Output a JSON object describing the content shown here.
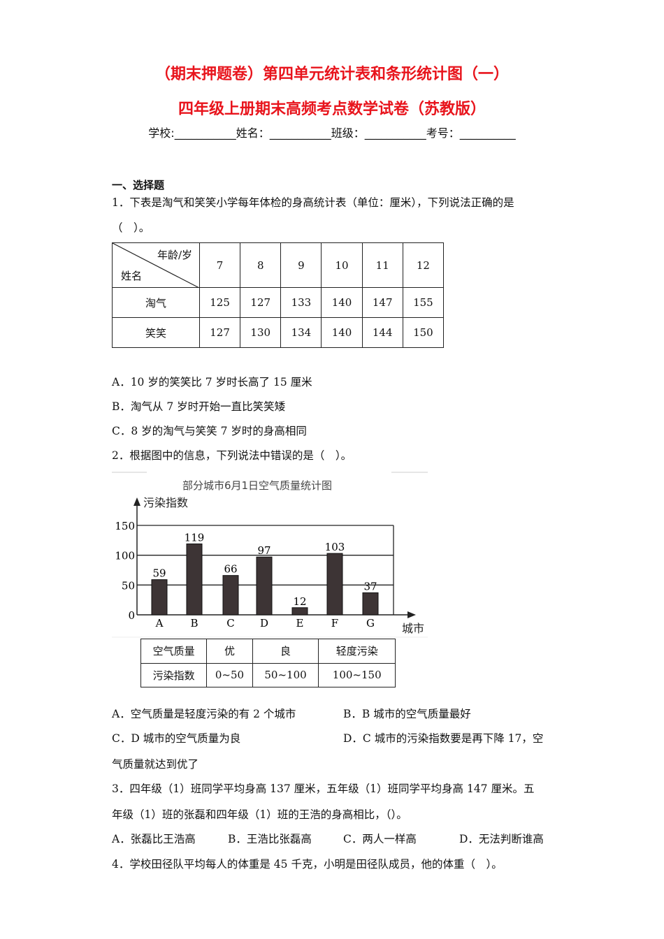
{
  "header": {
    "title_line1": "（期末押题卷）第四单元统计表和条形统计图（一）",
    "title_line2": "四年级上册期末高频考点数学试卷（苏教版）",
    "info_line": "学校:___________姓名：___________班级：___________考号：__________"
  },
  "section": "一、选择题",
  "q1": {
    "text": "1．下表是淘气和笑笑小学每年体检的身高统计表（单位：厘米），下列说法正确的是",
    "text2": "（　）。",
    "table": {
      "corner_top": "年龄/岁",
      "corner_bottom": "姓名",
      "ages": [
        "7",
        "8",
        "9",
        "10",
        "11",
        "12"
      ],
      "rows": [
        {
          "name": "淘气",
          "values": [
            "125",
            "127",
            "133",
            "140",
            "147",
            "155"
          ]
        },
        {
          "name": "笑笑",
          "values": [
            "127",
            "130",
            "134",
            "140",
            "144",
            "150"
          ]
        }
      ]
    },
    "options": [
      "A．10 岁的笑笑比 7 岁时长高了 15 厘米",
      "B．淘气从 7 岁时开始一直比笑笑矮",
      "C．8 岁的淘气与笑笑 7 岁时的身高相同"
    ]
  },
  "q2": {
    "text": "2．根据图中的信息，下列说法中错误的是（　）。",
    "legend_table": {
      "row1": [
        "空气质量",
        "优",
        "良",
        "轻度污染"
      ],
      "row2": [
        "污染指数",
        "0~50",
        "50~100",
        "100~150"
      ]
    },
    "options": [
      "A．空气质量是轻度污染的有 2 个城市",
      "B．B 城市的空气质量最好",
      "C．D 城市的空气质量为良",
      "D．C 城市的污染指数要是再下降 17，空"
    ],
    "option_cont": "气质量就达到优了"
  },
  "chart_data": {
    "type": "bar",
    "title": "部分城市6月1日空气质量统计图",
    "ylabel": "污染指数",
    "xlabel": "城市",
    "categories": [
      "A",
      "B",
      "C",
      "D",
      "E",
      "F",
      "G"
    ],
    "values": [
      59,
      119,
      66,
      97,
      12,
      103,
      37
    ],
    "ylim": [
      0,
      150
    ],
    "yticks": [
      "0",
      "50",
      "100",
      "150"
    ],
    "grid": true,
    "bar_color": "#3d3435"
  },
  "q3": {
    "text": "3．四年级（1）班同学平均身高 137 厘米，五年级（1）班同学平均身高 147 厘米。五",
    "text2": "年级（1）班的张磊和四年级（1）班的王浩的身高相比，（）。",
    "options": [
      "A．张磊比王浩高",
      "B．王浩比张磊高",
      "C．两人一样高",
      "D．无法判断谁高"
    ]
  },
  "q4": {
    "text": "4．学校田径队平均每人的体重是 45 千克，小明是田径队成员，他的体重（　）。"
  }
}
